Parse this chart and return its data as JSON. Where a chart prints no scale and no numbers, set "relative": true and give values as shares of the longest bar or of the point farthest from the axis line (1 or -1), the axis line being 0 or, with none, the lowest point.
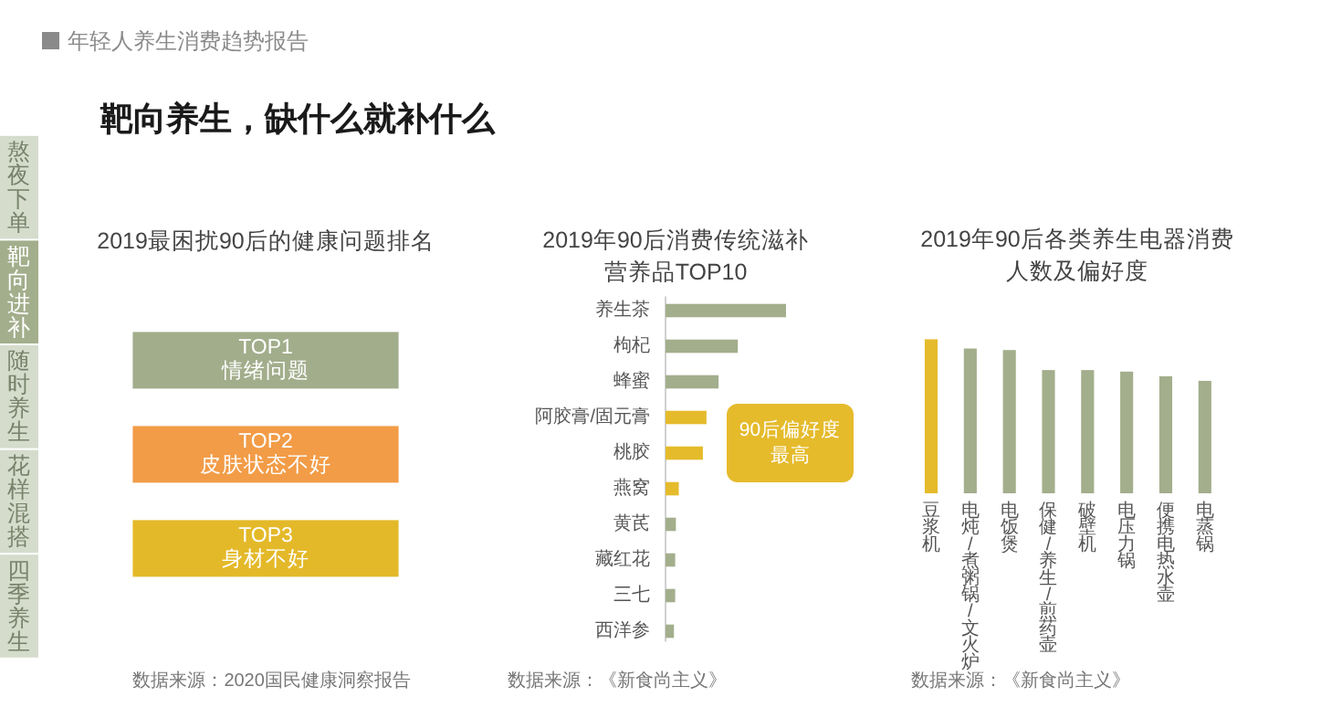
{
  "chart_data": [
    {
      "type": "other",
      "title": "靶向养生，缺什么就补什么",
      "subtitle": "年轻人养生消费趋势报告",
      "categories": [
        "熬夜下单",
        "靶向进补",
        "随时养生",
        "花样混搭",
        "四季养生"
      ],
      "colors": [
        "#d5dccc",
        "#a3ae8c",
        "#d5dccc",
        "#d5dccc",
        "#d5dccc"
      ]
    },
    {
      "type": "other",
      "title": "2019最困扰90后的健康问题排名",
      "categories": [
        "TOP1\n情绪问题",
        "TOP2\n皮肤状态不好",
        "TOP3\n身材不好"
      ],
      "colors": [
        "#a2ad8b",
        "#f29c47",
        "#e4b929"
      ],
      "annotations": [
        "数据来源：2020国民健康洞察报告"
      ]
    },
    {
      "type": "bar",
      "orientation": "horizontal",
      "relative": true,
      "title": "2019年90后消费传统滋补营养品TOP10",
      "categories": [
        "养生茶",
        "枸杞",
        "蜂蜜",
        "阿胶膏/固元膏",
        "桃胶",
        "燕窝",
        "黄芪",
        "藏红花",
        "三七",
        "西洋参"
      ],
      "values": [
        1,
        0.6,
        0.44,
        0.34,
        0.31,
        0.11,
        0.086,
        0.08,
        0.08,
        0.07
      ],
      "colors": [
        "#a3ae8c",
        "#a3ae8c",
        "#a3ae8c",
        "#e5bb2c",
        "#e5bb2c",
        "#e5bb2c",
        "#a3ae8c",
        "#a3ae8c",
        "#a3ae8c",
        "#a3ae8c"
      ],
      "annotations": [
        "90后偏好度最高",
        "数据来源：《新食尚主义》"
      ]
    },
    {
      "type": "bar",
      "relative": true,
      "title": "2019年90后各类养生电器消费人数及偏好度",
      "categories": [
        "豆浆机",
        "电炖/煮粥锅/文火炉",
        "电饭煲",
        "保健/养生/煎药壶",
        "破壁机",
        "电压力锅",
        "便携电热水壶",
        "电蒸锅"
      ],
      "values": [
        1,
        0.94,
        0.93,
        0.8,
        0.8,
        0.79,
        0.76,
        0.73
      ],
      "colors": [
        "#e5bb2c",
        "#a3ae8c",
        "#a3ae8c",
        "#a3ae8c",
        "#a3ae8c",
        "#a3ae8c",
        "#a3ae8c",
        "#a3ae8c"
      ],
      "annotations": [
        "数据来源：《新食尚主义》"
      ]
    }
  ]
}
